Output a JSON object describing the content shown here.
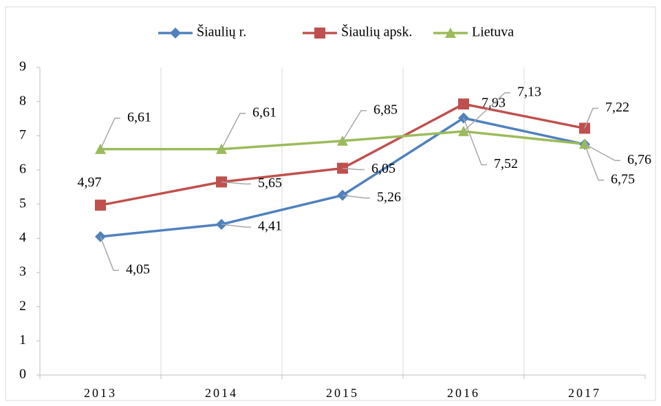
{
  "chart_data": {
    "type": "line",
    "categories": [
      "2013",
      "2014",
      "2015",
      "2016",
      "2017"
    ],
    "series": [
      {
        "name": "Šiaulių r.",
        "color": "#4f81bd",
        "marker": "diamond",
        "values": [
          4.05,
          4.41,
          5.26,
          7.52,
          6.75
        ],
        "value_labels": [
          "4,05",
          "4,41",
          "5,26",
          "7,52",
          "6,75"
        ]
      },
      {
        "name": "Šiaulių apsk.",
        "color": "#c0504d",
        "marker": "square",
        "values": [
          4.97,
          5.65,
          6.05,
          7.93,
          7.22
        ],
        "value_labels": [
          "4,97",
          "5,65",
          "6,05",
          "7,93",
          "7,22"
        ]
      },
      {
        "name": "Lietuva",
        "color": "#9bbb59",
        "marker": "triangle",
        "values": [
          6.61,
          6.61,
          6.85,
          7.13,
          6.76
        ],
        "value_labels": [
          "6,61",
          "6,61",
          "6,85",
          "7,13",
          "6,76"
        ]
      }
    ],
    "ylim": [
      0,
      9
    ],
    "yticks": [
      0,
      1,
      2,
      3,
      4,
      5,
      6,
      7,
      8,
      9
    ],
    "grid": true,
    "legend": "top"
  }
}
